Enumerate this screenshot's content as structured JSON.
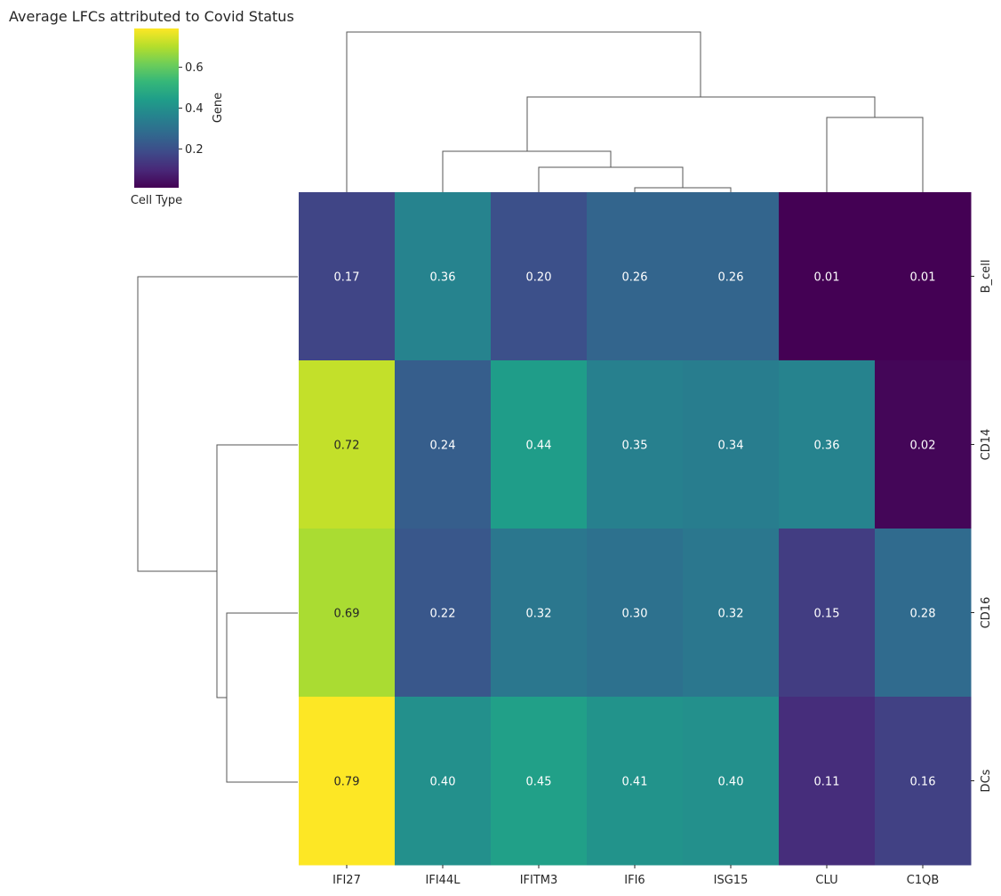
{
  "chart_data": {
    "type": "heatmap",
    "title": "Average LFCs attributed to Covid Status",
    "xlabel": "Gene",
    "ylabel": "Cell Type",
    "columns": [
      "IFI27",
      "IFI44L",
      "IFITM3",
      "IFI6",
      "ISG15",
      "CLU",
      "C1QB"
    ],
    "rows": [
      "B_cell",
      "CD14",
      "CD16",
      "DCs"
    ],
    "values": [
      [
        0.17,
        0.36,
        0.2,
        0.26,
        0.26,
        0.01,
        0.01
      ],
      [
        0.72,
        0.24,
        0.44,
        0.35,
        0.34,
        0.36,
        0.02
      ],
      [
        0.69,
        0.22,
        0.32,
        0.3,
        0.32,
        0.15,
        0.28
      ],
      [
        0.79,
        0.4,
        0.45,
        0.41,
        0.4,
        0.11,
        0.16
      ]
    ],
    "cell_labels": [
      [
        "0.17",
        "0.36",
        "0.20",
        "0.26",
        "0.26",
        "0.01",
        "0.01"
      ],
      [
        "0.72",
        "0.24",
        "0.44",
        "0.35",
        "0.34",
        "0.36",
        "0.02"
      ],
      [
        "0.69",
        "0.22",
        "0.32",
        "0.30",
        "0.32",
        "0.15",
        "0.28"
      ],
      [
        "0.79",
        "0.40",
        "0.45",
        "0.41",
        "0.40",
        "0.11",
        "0.16"
      ]
    ],
    "colormap": "viridis",
    "color_range": [
      0.01,
      0.79
    ],
    "colorbar": {
      "ticks": [
        0.2,
        0.4,
        0.6
      ],
      "tick_labels": [
        "0.2",
        "0.4",
        "0.6"
      ],
      "placement": "top-left"
    },
    "dendrograms": [
      "top",
      "left"
    ],
    "colors": {
      "cell_text": "#ffffff",
      "dark_text": "#262626",
      "dendrogram_line": "#555555"
    }
  }
}
